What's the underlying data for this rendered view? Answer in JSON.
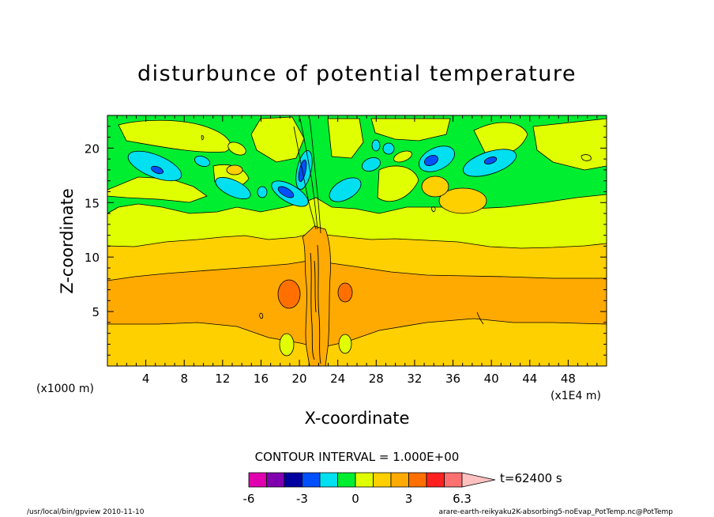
{
  "chart_data": {
    "type": "contour",
    "title": "disturbunce of potential temperature",
    "xlabel": "X-coordinate",
    "ylabel": "Z-coordinate",
    "x_scale_note": "(x1E4 m)",
    "y_scale_note": "(x1000 m)",
    "xlim": [
      0,
      52
    ],
    "ylim": [
      0,
      23
    ],
    "x_ticks": [
      "4",
      "8",
      "12",
      "16",
      "20",
      "24",
      "28",
      "32",
      "36",
      "40",
      "44",
      "48"
    ],
    "y_ticks": [
      "5",
      "10",
      "15",
      "20"
    ],
    "contour_interval_text": "CONTOUR INTERVAL = 1.000E+00",
    "time_text": "t=62400 s",
    "colorbar": {
      "tick_labels": [
        "-6",
        "-3",
        "0",
        "3",
        "6.3"
      ],
      "colors": [
        "#e000b0",
        "#8000b0",
        "#0000a0",
        "#0050ff",
        "#00e0f0",
        "#00ee30",
        "#e0ff00",
        "#ffd000",
        "#ffaa00",
        "#ff7000",
        "#ff2020",
        "#ff7070",
        "#ffc0c0"
      ]
    },
    "levels": [
      {
        "z_range": [
          0,
          3.8
        ],
        "theta": "1 to 2"
      },
      {
        "z_range": [
          3.8,
          7.5
        ],
        "theta": "2 to 3"
      },
      {
        "z_range": [
          7.5,
          11
        ],
        "theta": "1 to 2"
      },
      {
        "z_range": [
          11,
          14
        ],
        "theta": "0 to 1"
      },
      {
        "z_range": [
          14,
          23
        ],
        "theta": "-1 to 0"
      }
    ],
    "footer_left": "/usr/local/bin/gpview  2010-11-10",
    "footer_right": "arare-earth-reikyaku2K-absorbing5-noEvap_PotTemp.nc@PotTemp"
  }
}
